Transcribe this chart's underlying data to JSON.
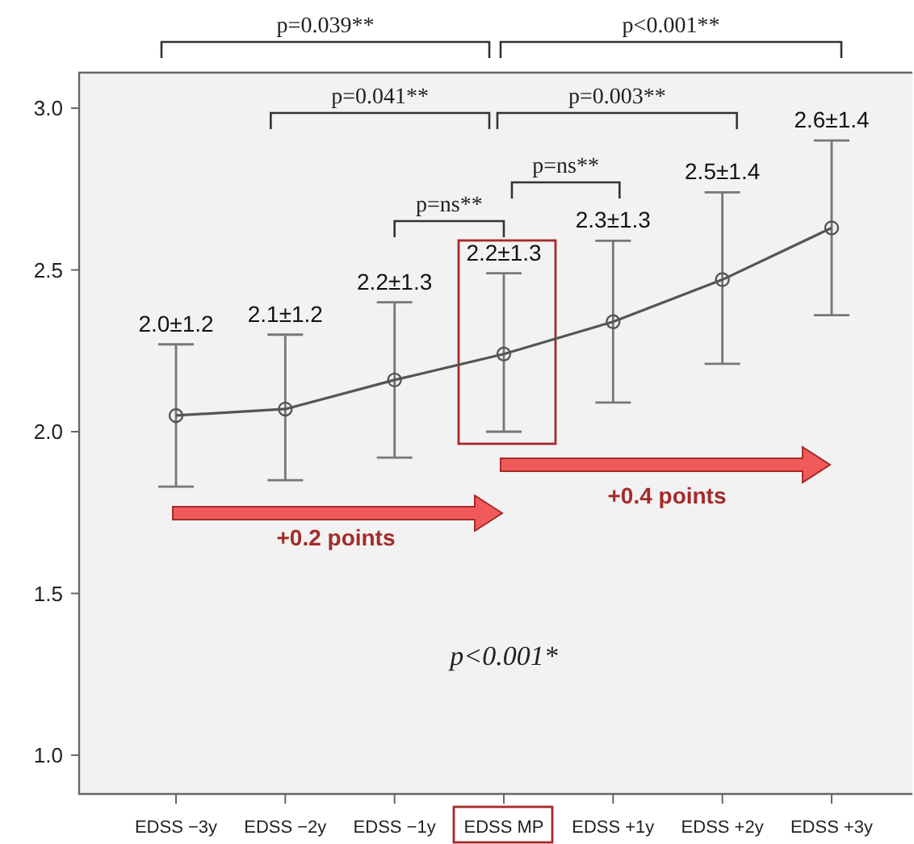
{
  "chart_data": {
    "type": "line",
    "categories": [
      "EDSS −3y",
      "EDSS −2y",
      "EDSS −1y",
      "EDSS MP",
      "EDSS +1y",
      "EDSS +2y",
      "EDSS +3y"
    ],
    "series": [
      {
        "color": "#555555",
        "values": [
          2.05,
          2.07,
          2.16,
          2.24,
          2.34,
          2.47,
          2.63
        ],
        "errors": [
          [
            1.83,
            2.27
          ],
          [
            1.85,
            2.3
          ],
          [
            1.92,
            2.4
          ],
          [
            2.0,
            2.49
          ],
          [
            2.09,
            2.59
          ],
          [
            2.21,
            2.74
          ],
          [
            2.36,
            2.9
          ]
        ]
      }
    ],
    "ylim": [
      0.88,
      3.11
    ],
    "yticks": [
      {
        "value": 1,
        "label": "1.0"
      },
      {
        "value": 1.5,
        "label": "1.5"
      },
      {
        "value": 2,
        "label": "2.0"
      },
      {
        "value": 2.5,
        "label": "2.5"
      },
      {
        "value": 3,
        "label": "3.0"
      }
    ],
    "grid": false,
    "marker": "circle",
    "line_style": "solid",
    "annotations": [
      "p=0.039**",
      "p<0.001**",
      "p=0.041**",
      "p=0.003**",
      "p=ns**",
      "p=ns**",
      "+0.2 points",
      "+0.4 points",
      "p<0.001*",
      {
        "text": "2.0±1.2",
        "x": "EDSS −3y",
        "y": 2.27
      },
      {
        "text": "2.1±1.2",
        "x": "EDSS −2y",
        "y": 2.3
      },
      {
        "text": "2.2±1.3",
        "x": "EDSS −1y",
        "y": 2.4
      },
      {
        "text": "2.2±1.3",
        "x": "EDSS MP",
        "y": 2.49
      },
      {
        "text": "2.3±1.3",
        "x": "EDSS +1y",
        "y": 2.59
      },
      {
        "text": "2.5±1.4",
        "x": "EDSS +2y",
        "y": 2.74
      },
      {
        "text": "2.6±1.4",
        "x": "EDSS +3y",
        "y": 2.9
      }
    ]
  }
}
